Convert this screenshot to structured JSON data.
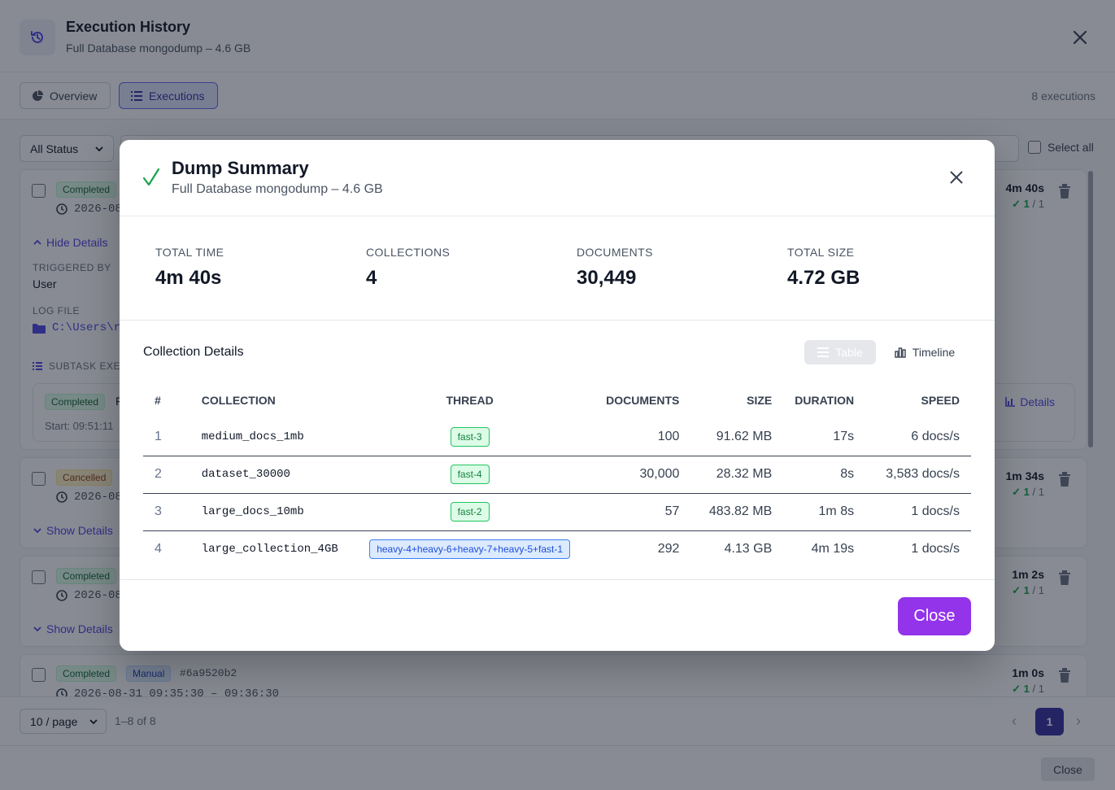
{
  "app": {
    "title": "Execution History",
    "subtitle": "Full Database mongodump – 4.6 GB",
    "tabs": [
      {
        "label": "Overview"
      },
      {
        "label": "Executions"
      }
    ],
    "execution_count": "8 executions",
    "filter": {
      "status_label": "All Status"
    },
    "select_all_label": "Select all",
    "executions": [
      {
        "status": "Completed",
        "time": "2026-08",
        "toggle_label": "Hide Details",
        "duration": "4m 40s",
        "ok_count": "✓ 1",
        "total": "/ 1"
      },
      {
        "status": "Cancelled",
        "time": "2026-08",
        "toggle_label": "Show Details",
        "duration": "1m 34s",
        "ok_count": "✓ 1",
        "total": "/ 1"
      },
      {
        "status": "Completed",
        "time": "2026-08",
        "toggle_label": "Show Details",
        "duration": "1m 2s",
        "ok_count": "✓ 1",
        "total": "/ 1"
      },
      {
        "status": "Completed",
        "trigger_badge": "Manual",
        "hash": "#6a9520b2",
        "time": "2026-08-31 09:35:30 – 09:36:30",
        "duration": "1m 0s",
        "ok_count": "✓ 1",
        "total": "/ 1"
      }
    ],
    "details": {
      "triggered_by_label": "TRIGGERED BY",
      "triggered_by_value": "User",
      "log_file_label": "LOG FILE",
      "log_file_value": "C:\\Users\\r",
      "subtask_label": "SUBTASK EXE",
      "subtask_status": "Completed",
      "subtask_name": "F",
      "subtask_start": "Start: 09:51:11",
      "details_link": "Details"
    },
    "pagination": {
      "page_size": "10 / page",
      "range": "1–8 of 8",
      "current_page": "1"
    },
    "bottom_close": "Close"
  },
  "modal": {
    "title": "Dump Summary",
    "subtitle": "Full Database mongodump – 4.6 GB",
    "stats": [
      {
        "label": "TOTAL TIME",
        "value": "4m 40s"
      },
      {
        "label": "COLLECTIONS",
        "value": "4"
      },
      {
        "label": "DOCUMENTS",
        "value": "30,449"
      },
      {
        "label": "TOTAL SIZE",
        "value": "4.72 GB"
      }
    ],
    "section_title": "Collection Details",
    "view_buttons": {
      "table": "Table",
      "timeline": "Timeline"
    },
    "columns": [
      "#",
      "COLLECTION",
      "THREAD",
      "DOCUMENTS",
      "SIZE",
      "DURATION",
      "SPEED"
    ],
    "rows": [
      {
        "num": "1",
        "collection": "medium_docs_1mb",
        "thread": "fast-3",
        "documents": "100",
        "size": "91.62 MB",
        "duration": "17s",
        "speed": "6 docs/s"
      },
      {
        "num": "2",
        "collection": "dataset_30000",
        "thread": "fast-4",
        "documents": "30,000",
        "size": "28.32 MB",
        "duration": "8s",
        "speed": "3,583 docs/s"
      },
      {
        "num": "3",
        "collection": "large_docs_10mb",
        "thread": "fast-2",
        "documents": "57",
        "size": "483.82 MB",
        "duration": "1m 8s",
        "speed": "1 docs/s"
      },
      {
        "num": "4",
        "collection": "large_collection_4GB",
        "thread": "heavy-4+heavy-6+heavy-7+heavy-5+fast-1",
        "documents": "292",
        "size": "4.13 GB",
        "duration": "4m 19s",
        "speed": "1 docs/s"
      }
    ],
    "close_label": "Close"
  }
}
